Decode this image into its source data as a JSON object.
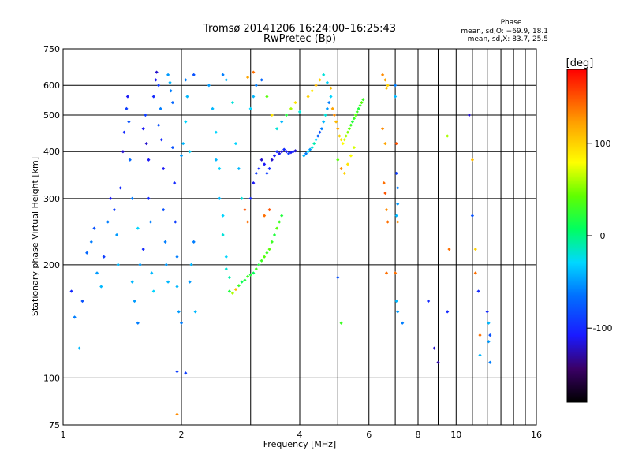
{
  "chart_data": {
    "type": "scatter",
    "title": "Tromsø 20141206 16:24:00–16:25:43",
    "subtitle": "RwPretec (Bp)",
    "xlabel": "Frequency [MHz]",
    "ylabel": "Stationary phase Virtual Height [km]",
    "x_scale": "log",
    "y_scale": "log",
    "xlim": [
      1,
      16
    ],
    "ylim": [
      75,
      750
    ],
    "x_ticks": [
      1,
      2,
      4,
      6,
      8,
      10,
      16
    ],
    "x_minor_gridlines": [
      3,
      5,
      7,
      9,
      11,
      12,
      13,
      14,
      15
    ],
    "y_ticks": [
      75,
      100,
      200,
      300,
      400,
      500,
      600,
      750
    ],
    "grid": true,
    "phase_box": {
      "heading": "Phase",
      "line_o": "mean, sd,O: −69.9, 18.1",
      "line_x": "mean, sd,X:  83.7, 25.5"
    },
    "colorbar": {
      "label": "[deg]",
      "ticks": [
        100,
        0,
        -100
      ],
      "range": [
        -180,
        180
      ]
    },
    "series": [
      {
        "points": [
          [
            1.05,
            170,
            -100
          ],
          [
            1.07,
            145,
            -60
          ],
          [
            1.1,
            120,
            -40
          ],
          [
            1.12,
            160,
            -80
          ],
          [
            1.15,
            215,
            -70
          ],
          [
            1.18,
            230,
            -60
          ],
          [
            1.2,
            250,
            -80
          ],
          [
            1.22,
            190,
            -50
          ],
          [
            1.25,
            175,
            -40
          ],
          [
            1.27,
            210,
            -90
          ],
          [
            1.3,
            260,
            -60
          ],
          [
            1.32,
            300,
            -110
          ],
          [
            1.35,
            280,
            -90
          ],
          [
            1.37,
            240,
            -50
          ],
          [
            1.38,
            200,
            -40
          ],
          [
            1.4,
            320,
            -100
          ],
          [
            1.42,
            400,
            -120
          ],
          [
            1.43,
            450,
            -100
          ],
          [
            1.45,
            520,
            -90
          ],
          [
            1.46,
            560,
            -110
          ],
          [
            1.47,
            480,
            -80
          ],
          [
            1.48,
            380,
            -70
          ],
          [
            1.5,
            300,
            -60
          ],
          [
            1.5,
            180,
            -40
          ],
          [
            1.52,
            160,
            -50
          ],
          [
            1.55,
            140,
            -60
          ],
          [
            1.55,
            250,
            -30
          ],
          [
            1.57,
            200,
            -50
          ],
          [
            1.6,
            220,
            -100
          ],
          [
            1.6,
            460,
            -110
          ],
          [
            1.62,
            500,
            -90
          ],
          [
            1.63,
            420,
            -120
          ],
          [
            1.65,
            380,
            -110
          ],
          [
            1.65,
            300,
            -100
          ],
          [
            1.67,
            260,
            -60
          ],
          [
            1.68,
            190,
            -40
          ],
          [
            1.7,
            170,
            -30
          ],
          [
            1.7,
            560,
            -100
          ],
          [
            1.72,
            620,
            -110
          ],
          [
            1.73,
            650,
            -120
          ],
          [
            1.75,
            600,
            -90
          ],
          [
            1.75,
            470,
            -80
          ],
          [
            1.77,
            520,
            -60
          ],
          [
            1.78,
            430,
            -100
          ],
          [
            1.8,
            360,
            -110
          ],
          [
            1.8,
            280,
            -80
          ],
          [
            1.82,
            230,
            -60
          ],
          [
            1.83,
            200,
            -50
          ],
          [
            1.85,
            180,
            -40
          ],
          [
            1.85,
            640,
            -50
          ],
          [
            1.87,
            610,
            -40
          ],
          [
            1.88,
            580,
            -60
          ],
          [
            1.9,
            540,
            -70
          ],
          [
            1.9,
            410,
            -80
          ],
          [
            1.92,
            330,
            -100
          ],
          [
            1.93,
            260,
            -90
          ],
          [
            1.95,
            210,
            -60
          ],
          [
            1.95,
            175,
            -40
          ],
          [
            1.97,
            150,
            -50
          ],
          [
            2.0,
            140,
            -60
          ],
          [
            2.0,
            390,
            -50
          ],
          [
            2.02,
            420,
            -40
          ],
          [
            2.05,
            480,
            -30
          ],
          [
            2.05,
            620,
            -60
          ],
          [
            2.07,
            560,
            -40
          ],
          [
            2.1,
            400,
            -30
          ],
          [
            2.1,
            180,
            -50
          ],
          [
            2.12,
            200,
            -40
          ],
          [
            2.15,
            230,
            -60
          ],
          [
            2.15,
            640,
            -80
          ],
          [
            2.17,
            150,
            -40
          ],
          [
            1.95,
            104,
            -90
          ],
          [
            2.05,
            103,
            -90
          ],
          [
            1.95,
            80,
            130
          ],
          [
            2.35,
            600,
            -50
          ],
          [
            2.4,
            520,
            -40
          ],
          [
            2.45,
            450,
            -30
          ],
          [
            2.45,
            380,
            -40
          ],
          [
            2.5,
            360,
            -30
          ],
          [
            2.5,
            300,
            -40
          ],
          [
            2.55,
            270,
            -30
          ],
          [
            2.55,
            240,
            -20
          ],
          [
            2.6,
            210,
            -30
          ],
          [
            2.6,
            195,
            -20
          ],
          [
            2.65,
            185,
            -10
          ],
          [
            2.65,
            170,
            20
          ],
          [
            2.7,
            168,
            60
          ],
          [
            2.75,
            172,
            110
          ],
          [
            2.8,
            176,
            30
          ],
          [
            2.85,
            180,
            10
          ],
          [
            2.9,
            182,
            20
          ],
          [
            2.95,
            186,
            30
          ],
          [
            3.0,
            188,
            20
          ],
          [
            3.05,
            190,
            10
          ],
          [
            3.1,
            195,
            30
          ],
          [
            3.15,
            200,
            20
          ],
          [
            3.2,
            205,
            30
          ],
          [
            3.25,
            210,
            40
          ],
          [
            3.3,
            215,
            30
          ],
          [
            3.35,
            220,
            40
          ],
          [
            3.4,
            230,
            30
          ],
          [
            3.45,
            240,
            20
          ],
          [
            3.5,
            250,
            40
          ],
          [
            3.55,
            260,
            30
          ],
          [
            3.6,
            270,
            20
          ],
          [
            2.55,
            640,
            -60
          ],
          [
            2.6,
            620,
            -40
          ],
          [
            2.7,
            540,
            -20
          ],
          [
            2.75,
            420,
            -30
          ],
          [
            2.8,
            360,
            -40
          ],
          [
            2.85,
            300,
            -20
          ],
          [
            2.9,
            280,
            150
          ],
          [
            2.95,
            260,
            140
          ],
          [
            3.0,
            300,
            -100
          ],
          [
            3.05,
            330,
            -110
          ],
          [
            3.1,
            350,
            -90
          ],
          [
            3.15,
            360,
            -100
          ],
          [
            3.2,
            380,
            -120
          ],
          [
            3.25,
            370,
            -110
          ],
          [
            3.3,
            350,
            -90
          ],
          [
            3.35,
            360,
            -100
          ],
          [
            3.4,
            380,
            -120
          ],
          [
            3.45,
            390,
            -110
          ],
          [
            3.5,
            400,
            -100
          ],
          [
            3.55,
            395,
            -110
          ],
          [
            3.6,
            400,
            -120
          ],
          [
            3.65,
            405,
            -100
          ],
          [
            3.7,
            400,
            -110
          ],
          [
            3.75,
            395,
            -90
          ],
          [
            3.8,
            398,
            -110
          ],
          [
            3.85,
            400,
            -100
          ],
          [
            3.9,
            402,
            -120
          ],
          [
            3.0,
            520,
            -30
          ],
          [
            3.05,
            560,
            -40
          ],
          [
            3.1,
            600,
            -60
          ],
          [
            3.2,
            620,
            -70
          ],
          [
            3.3,
            560,
            40
          ],
          [
            3.4,
            500,
            90
          ],
          [
            3.5,
            460,
            -20
          ],
          [
            3.6,
            480,
            -40
          ],
          [
            3.7,
            500,
            20
          ],
          [
            3.8,
            520,
            60
          ],
          [
            3.9,
            540,
            90
          ],
          [
            4.0,
            510,
            -20
          ],
          [
            2.95,
            630,
            120
          ],
          [
            3.05,
            650,
            140
          ],
          [
            3.25,
            270,
            140
          ],
          [
            3.35,
            280,
            150
          ],
          [
            4.1,
            390,
            -40
          ],
          [
            4.15,
            395,
            -60
          ],
          [
            4.2,
            400,
            -30
          ],
          [
            4.25,
            405,
            -50
          ],
          [
            4.3,
            410,
            -20
          ],
          [
            4.35,
            420,
            -10
          ],
          [
            4.4,
            430,
            -30
          ],
          [
            4.45,
            440,
            -70
          ],
          [
            4.5,
            450,
            -80
          ],
          [
            4.55,
            460,
            -60
          ],
          [
            4.6,
            480,
            -40
          ],
          [
            4.65,
            500,
            -20
          ],
          [
            4.7,
            520,
            -50
          ],
          [
            4.75,
            540,
            -60
          ],
          [
            4.8,
            560,
            -30
          ],
          [
            4.85,
            520,
            120
          ],
          [
            4.9,
            500,
            130
          ],
          [
            4.95,
            480,
            110
          ],
          [
            5.0,
            460,
            120
          ],
          [
            5.05,
            440,
            100
          ],
          [
            5.1,
            430,
            90
          ],
          [
            5.15,
            420,
            80
          ],
          [
            5.2,
            430,
            70
          ],
          [
            5.25,
            440,
            60
          ],
          [
            5.3,
            450,
            50
          ],
          [
            5.35,
            460,
            40
          ],
          [
            5.4,
            470,
            30
          ],
          [
            5.45,
            480,
            20
          ],
          [
            5.5,
            490,
            30
          ],
          [
            5.55,
            500,
            40
          ],
          [
            5.6,
            510,
            30
          ],
          [
            5.65,
            520,
            20
          ],
          [
            5.7,
            530,
            30
          ],
          [
            5.75,
            540,
            40
          ],
          [
            5.8,
            550,
            30
          ],
          [
            4.2,
            560,
            100
          ],
          [
            4.3,
            580,
            90
          ],
          [
            4.4,
            600,
            110
          ],
          [
            4.5,
            620,
            100
          ],
          [
            4.6,
            640,
            -20
          ],
          [
            4.7,
            610,
            -30
          ],
          [
            4.8,
            590,
            110
          ],
          [
            5.0,
            380,
            40
          ],
          [
            5.1,
            360,
            130
          ],
          [
            5.2,
            350,
            100
          ],
          [
            5.3,
            370,
            90
          ],
          [
            5.4,
            390,
            80
          ],
          [
            5.5,
            410,
            70
          ],
          [
            5.0,
            185,
            -80
          ],
          [
            5.1,
            140,
            30
          ],
          [
            6.5,
            640,
            130
          ],
          [
            6.6,
            620,
            120
          ],
          [
            6.65,
            590,
            110
          ],
          [
            6.7,
            600,
            100
          ],
          [
            6.5,
            460,
            130
          ],
          [
            6.6,
            420,
            120
          ],
          [
            6.55,
            330,
            140
          ],
          [
            6.6,
            310,
            150
          ],
          [
            6.65,
            280,
            130
          ],
          [
            6.7,
            260,
            140
          ],
          [
            6.65,
            190,
            140
          ],
          [
            7.0,
            600,
            -60
          ],
          [
            7.0,
            560,
            -40
          ],
          [
            7.05,
            420,
            150
          ],
          [
            7.05,
            350,
            -90
          ],
          [
            7.1,
            320,
            -60
          ],
          [
            7.1,
            290,
            -50
          ],
          [
            7.05,
            270,
            -40
          ],
          [
            7.1,
            260,
            130
          ],
          [
            7.0,
            190,
            140
          ],
          [
            7.05,
            160,
            -40
          ],
          [
            7.1,
            150,
            -50
          ],
          [
            7.3,
            140,
            -60
          ],
          [
            8.5,
            160,
            -100
          ],
          [
            8.8,
            120,
            -120
          ],
          [
            9.0,
            110,
            -130
          ],
          [
            9.5,
            440,
            60
          ],
          [
            9.6,
            220,
            140
          ],
          [
            9.5,
            150,
            -100
          ],
          [
            10.8,
            500,
            -120
          ],
          [
            11.0,
            380,
            110
          ],
          [
            11.0,
            270,
            -80
          ],
          [
            11.2,
            220,
            100
          ],
          [
            11.2,
            190,
            140
          ],
          [
            11.4,
            170,
            -100
          ],
          [
            11.5,
            130,
            140
          ],
          [
            11.5,
            115,
            -40
          ],
          [
            12.0,
            150,
            -100
          ],
          [
            12.1,
            140,
            -40
          ],
          [
            12.2,
            130,
            -80
          ],
          [
            12.1,
            125,
            -50
          ],
          [
            12.2,
            110,
            -60
          ]
        ]
      }
    ]
  }
}
